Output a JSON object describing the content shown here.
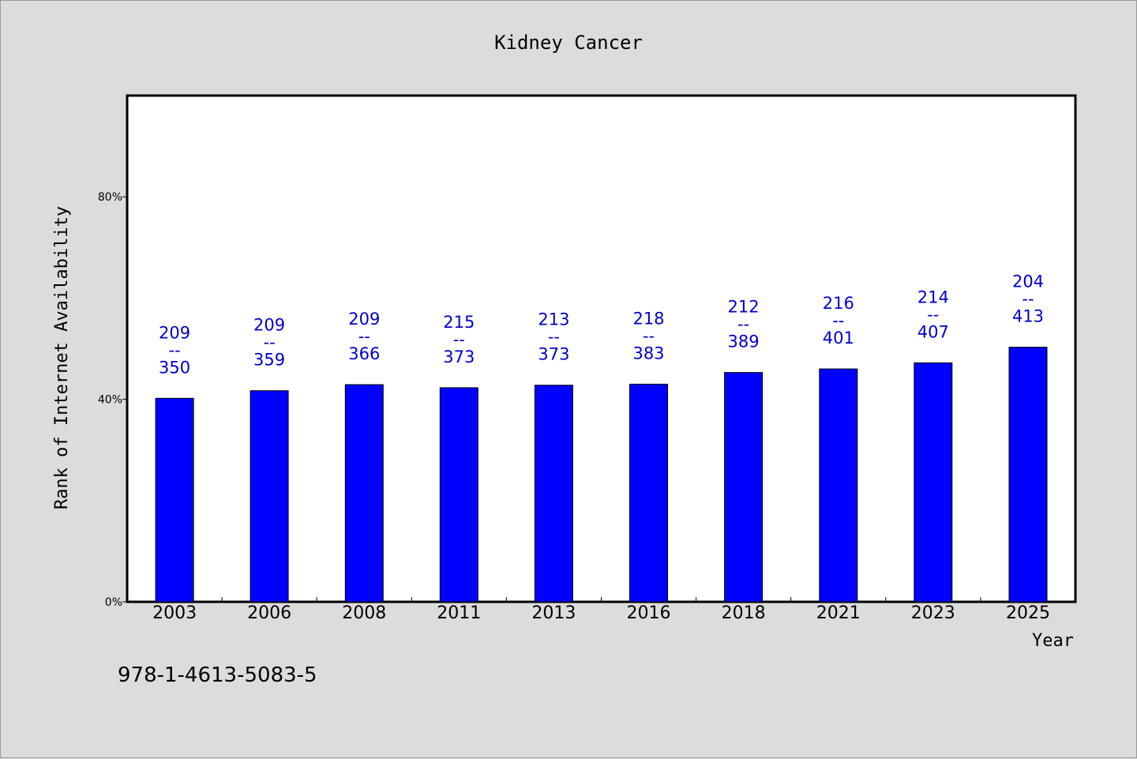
{
  "chart_data": {
    "type": "bar",
    "title": "Kidney Cancer",
    "xlabel": "Year",
    "ylabel": "Rank of Internet Availability",
    "categories": [
      "2003",
      "2006",
      "2008",
      "2011",
      "2013",
      "2016",
      "2018",
      "2021",
      "2023",
      "2025"
    ],
    "series": [
      {
        "values": [
          40.2,
          41.7,
          42.9,
          42.3,
          42.8,
          43.0,
          45.3,
          46.0,
          47.2,
          50.3
        ],
        "color": "#0000ff"
      }
    ],
    "data_labels": [
      [
        "209",
        "--",
        "350"
      ],
      [
        "209",
        "--",
        "359"
      ],
      [
        "209",
        "--",
        "366"
      ],
      [
        "215",
        "--",
        "373"
      ],
      [
        "213",
        "--",
        "373"
      ],
      [
        "218",
        "--",
        "383"
      ],
      [
        "212",
        "--",
        "389"
      ],
      [
        "216",
        "--",
        "401"
      ],
      [
        "214",
        "--",
        "407"
      ],
      [
        "204",
        "--",
        "413"
      ]
    ],
    "data_label_color": "#0000cc",
    "yticks": [
      0,
      40,
      80
    ],
    "ytick_labels": [
      "0%",
      "40%",
      "80%"
    ],
    "ylim": [
      0,
      100
    ],
    "grid": false,
    "plot_background": "#ffffff",
    "figure_background": "#dcdcdc"
  },
  "footer": {
    "isbn": "978-1-4613-5083-5"
  }
}
